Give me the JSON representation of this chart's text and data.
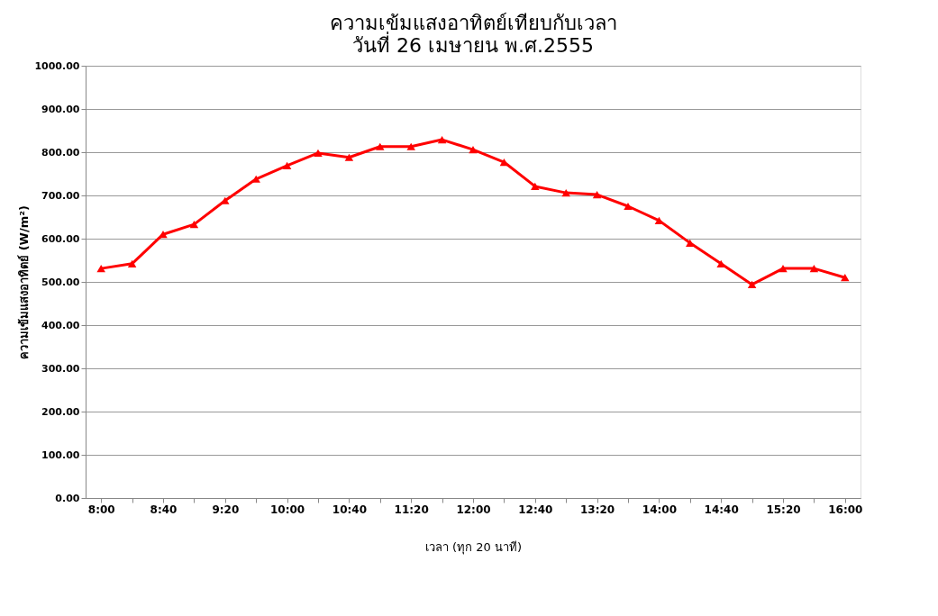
{
  "chart_data": {
    "type": "line",
    "title": "ความเข้มแสงอาทิตย์เทียบกับเวลา",
    "subtitle": "วันที่ 26 เมษายน พ.ศ.2555",
    "xlabel": "เวลา (ทุก 20 นาที)",
    "ylabel": "ความเข้มแสงอาทิตย์ (W/m²)",
    "categories": [
      "8:00",
      null,
      "8:40",
      null,
      "9:20",
      null,
      "10:00",
      null,
      "10:40",
      null,
      "11:20",
      null,
      "12:00",
      null,
      "12:40",
      null,
      "13:20",
      null,
      "14:00",
      null,
      "14:40",
      null,
      "15:20",
      null,
      "16:00"
    ],
    "series": [
      {
        "color": "#ff0000",
        "values": [
          531,
          542,
          610,
          633,
          688,
          738,
          769,
          798,
          788,
          813,
          813,
          829,
          806,
          777,
          721,
          706,
          702,
          675,
          642,
          590,
          542,
          494,
          531,
          531,
          510
        ]
      }
    ],
    "ylim": [
      0,
      1000
    ],
    "yticks": [
      {
        "value": 0,
        "label": "0.00"
      },
      {
        "value": 100,
        "label": "100.00"
      },
      {
        "value": 200,
        "label": "200.00"
      },
      {
        "value": 300,
        "label": "300.00"
      },
      {
        "value": 400,
        "label": "400.00"
      },
      {
        "value": 500,
        "label": "500.00"
      },
      {
        "value": 600,
        "label": "600.00"
      },
      {
        "value": 700,
        "label": "700.00"
      },
      {
        "value": 800,
        "label": "800.00"
      },
      {
        "value": 900,
        "label": "900.00"
      },
      {
        "value": 1000,
        "label": "1000.00"
      }
    ],
    "grid": "y",
    "marker": "triangle",
    "line_style": "solid"
  }
}
